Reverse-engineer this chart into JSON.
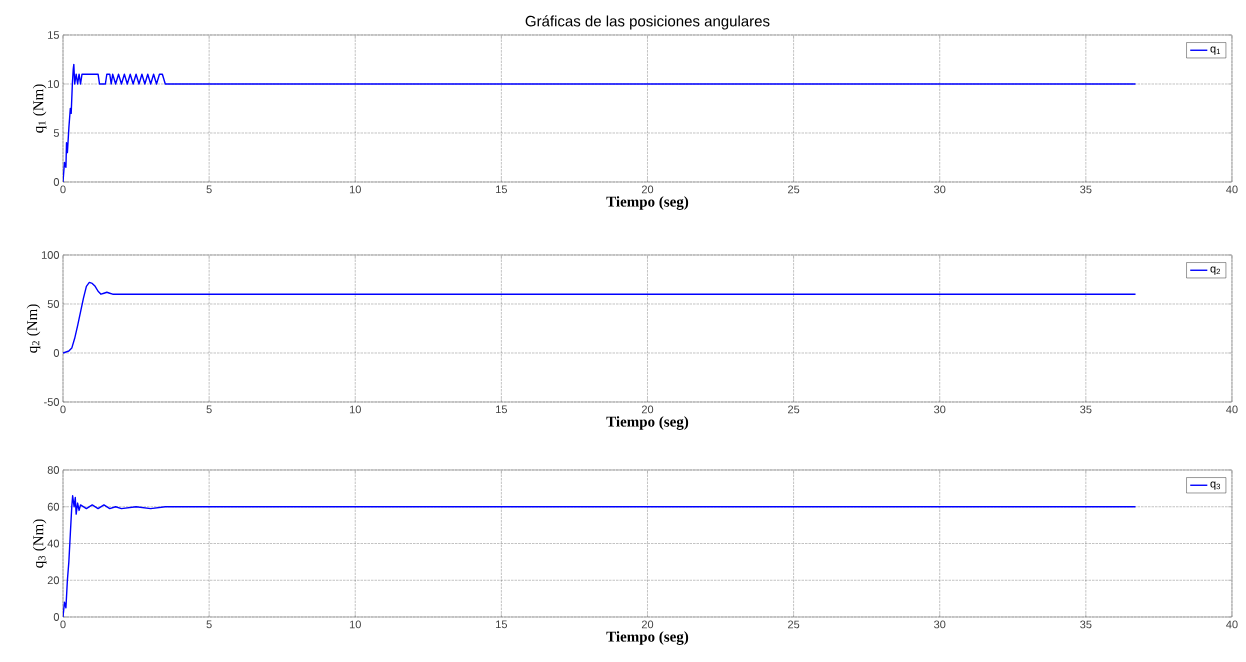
{
  "chart_data": [
    {
      "type": "line",
      "title": "Gráficas de las posiciones angulares",
      "xlabel": "Tiempo (seg)",
      "ylabel": "q$_{1}$ (Nm)",
      "xlim": [
        0,
        40
      ],
      "ylim": [
        0,
        15
      ],
      "xticks": [
        0,
        5,
        10,
        15,
        20,
        25,
        30,
        35,
        40
      ],
      "yticks": [
        0,
        5,
        10,
        15
      ],
      "grid": true,
      "legend": "top right",
      "marker": "none",
      "line_style": "solid",
      "series": [
        {
          "name": "q$_{1}$",
          "color": "#0000ff",
          "x": [
            0,
            0.05,
            0.1,
            0.12,
            0.15,
            0.2,
            0.25,
            0.28,
            0.32,
            0.35,
            0.37,
            0.4,
            0.45,
            0.5,
            0.55,
            0.6,
            0.65,
            1.2,
            1.25,
            1.45,
            1.5,
            1.6,
            1.65,
            1.7,
            1.8,
            1.9,
            2.0,
            2.1,
            2.2,
            2.3,
            2.4,
            2.5,
            2.6,
            2.7,
            2.8,
            2.9,
            3.0,
            3.1,
            3.2,
            3.3,
            3.4,
            3.5,
            36.7
          ],
          "values": [
            0,
            2,
            1.5,
            4,
            3,
            5.5,
            7.5,
            7,
            10,
            11.5,
            12,
            10,
            11,
            10,
            11,
            10,
            11,
            11,
            10,
            10,
            11,
            11,
            10,
            11,
            10,
            11,
            10,
            11,
            10,
            11,
            10,
            11,
            10,
            11,
            10,
            11,
            10,
            11,
            10,
            11,
            11,
            10,
            10
          ]
        }
      ]
    },
    {
      "type": "line",
      "xlabel": "Tiempo (seg)",
      "ylabel": "q$_{2}$ (Nm)",
      "xlim": [
        0,
        40
      ],
      "ylim": [
        -50,
        100
      ],
      "xticks": [
        0,
        5,
        10,
        15,
        20,
        25,
        30,
        35,
        40
      ],
      "yticks": [
        -50,
        0,
        50,
        100
      ],
      "grid": true,
      "legend": "top right",
      "marker": "none",
      "line_style": "solid",
      "series": [
        {
          "name": "q$_{2}$",
          "color": "#0000ff",
          "x": [
            0,
            0.2,
            0.3,
            0.4,
            0.5,
            0.6,
            0.7,
            0.8,
            0.9,
            1.0,
            1.1,
            1.2,
            1.3,
            1.4,
            1.5,
            1.6,
            1.7,
            36.7
          ],
          "values": [
            0,
            2,
            5,
            15,
            28,
            42,
            56,
            68,
            72,
            71,
            68,
            63,
            60,
            61,
            62,
            61,
            60,
            60
          ]
        }
      ]
    },
    {
      "type": "line",
      "xlabel": "Tiempo (seg)",
      "ylabel": "q$_{3}$ (Nm)",
      "xlim": [
        0,
        40
      ],
      "ylim": [
        0,
        80
      ],
      "xticks": [
        0,
        5,
        10,
        15,
        20,
        25,
        30,
        35,
        40
      ],
      "yticks": [
        0,
        20,
        40,
        60,
        80
      ],
      "grid": true,
      "legend": "top right",
      "marker": "none",
      "line_style": "solid",
      "series": [
        {
          "name": "q$_{3}$",
          "color": "#0000ff",
          "x": [
            0,
            0.05,
            0.1,
            0.15,
            0.2,
            0.25,
            0.3,
            0.33,
            0.38,
            0.42,
            0.45,
            0.5,
            0.55,
            0.6,
            0.8,
            1.0,
            1.2,
            1.4,
            1.6,
            1.8,
            2.0,
            2.5,
            3.0,
            3.5,
            3.8,
            36.7
          ],
          "values": [
            0,
            8,
            5,
            20,
            30,
            45,
            60,
            66,
            60,
            65,
            56,
            62,
            58,
            61,
            59,
            61,
            59,
            61,
            59,
            60,
            59,
            60,
            59,
            60,
            60,
            60
          ]
        }
      ]
    }
  ]
}
